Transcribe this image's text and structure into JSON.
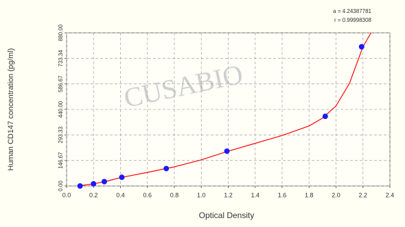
{
  "chart_data": {
    "type": "scatter",
    "x_label": "Optical Density",
    "y_label": "Human CD147 concentration (pg/ml)",
    "annotations": [
      "a = 4.24387781",
      "r = 0.99998308"
    ],
    "watermark": "CUSABIO",
    "series": [
      {
        "color": "#1a1aff",
        "x": [
          0.1,
          0.2,
          0.28,
          0.41,
          0.74,
          1.19,
          1.92,
          2.19
        ],
        "values": [
          0,
          12.5,
          25,
          50,
          100,
          200,
          400,
          800
        ]
      }
    ],
    "curve": {
      "color": "#ff0000",
      "x": [
        0.08,
        0.2,
        0.3,
        0.4,
        0.6,
        0.8,
        1.0,
        1.2,
        1.4,
        1.6,
        1.8,
        1.9,
        2.0,
        2.1,
        2.2,
        2.26
      ],
      "values": [
        0,
        12,
        28,
        48,
        78,
        110,
        150,
        200,
        245,
        290,
        345,
        390,
        460,
        590,
        800,
        880
      ]
    },
    "xlim": [
      0,
      2.4
    ],
    "xticks": [
      {
        "value": 0,
        "label": "0.0"
      },
      0.2,
      0.4,
      0.6,
      0.8,
      {
        "value": 1,
        "label": "1.0"
      },
      1.2,
      1.4,
      1.6,
      1.8,
      {
        "value": 2,
        "label": "2.0"
      },
      2.2,
      2.4
    ],
    "ylim": [
      0,
      880
    ],
    "yticks": [
      {
        "value": 0,
        "label": "0.00"
      },
      {
        "value": 146.67,
        "label": "146.67"
      },
      {
        "value": 293.33,
        "label": "293.33"
      },
      {
        "value": 440,
        "label": "440.00"
      },
      {
        "value": 586.67,
        "label": "586.67"
      },
      {
        "value": 733.34,
        "label": "733.34"
      },
      {
        "value": 880,
        "label": "880.00"
      }
    ],
    "grid": true
  }
}
